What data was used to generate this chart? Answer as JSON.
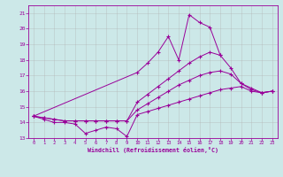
{
  "xlabel": "Windchill (Refroidissement éolien,°C)",
  "background_color": "#cce8e8",
  "line_color": "#990099",
  "grid_color": "#b0b0b0",
  "xlim": [
    -0.5,
    23.5
  ],
  "ylim": [
    13,
    21.5
  ],
  "xticks": [
    0,
    1,
    2,
    3,
    4,
    5,
    6,
    7,
    8,
    9,
    10,
    11,
    12,
    13,
    14,
    15,
    16,
    17,
    18,
    19,
    20,
    21,
    22,
    23
  ],
  "yticks": [
    13,
    14,
    15,
    16,
    17,
    18,
    19,
    20,
    21
  ],
  "series": [
    {
      "x": [
        0,
        1,
        2,
        3,
        4,
        5,
        6,
        7,
        8,
        9,
        10,
        11,
        12,
        13,
        14,
        15,
        16,
        17,
        18,
        19,
        20,
        21,
        22,
        23
      ],
      "y": [
        14.4,
        14.2,
        14.0,
        14.0,
        13.9,
        13.3,
        13.5,
        13.7,
        13.6,
        13.1,
        14.5,
        14.7,
        14.9,
        15.1,
        15.3,
        15.5,
        15.7,
        15.9,
        16.1,
        16.2,
        16.3,
        16.0,
        15.9,
        16.0
      ]
    },
    {
      "x": [
        0,
        1,
        2,
        3,
        4,
        5,
        6,
        7,
        8,
        9,
        10,
        11,
        12,
        13,
        14,
        15,
        16,
        17,
        18,
        19,
        20,
        21,
        22,
        23
      ],
      "y": [
        14.4,
        14.3,
        14.2,
        14.1,
        14.1,
        14.1,
        14.1,
        14.1,
        14.1,
        14.1,
        14.8,
        15.2,
        15.6,
        16.0,
        16.4,
        16.7,
        17.0,
        17.2,
        17.3,
        17.1,
        16.5,
        16.2,
        15.9,
        16.0
      ]
    },
    {
      "x": [
        0,
        1,
        2,
        3,
        4,
        5,
        6,
        7,
        8,
        9,
        10,
        11,
        12,
        13,
        14,
        15,
        16,
        17,
        18,
        19,
        20,
        21,
        22,
        23
      ],
      "y": [
        14.4,
        14.3,
        14.2,
        14.1,
        14.1,
        14.1,
        14.1,
        14.1,
        14.1,
        14.1,
        15.3,
        15.8,
        16.3,
        16.8,
        17.3,
        17.8,
        18.2,
        18.5,
        18.3,
        17.5,
        16.5,
        16.1,
        15.9,
        16.0
      ]
    },
    {
      "x": [
        0,
        10,
        11,
        12,
        13,
        14,
        15,
        16,
        17,
        18
      ],
      "y": [
        14.4,
        17.2,
        17.8,
        18.5,
        19.5,
        18.0,
        20.9,
        20.4,
        20.1,
        18.3
      ]
    }
  ]
}
